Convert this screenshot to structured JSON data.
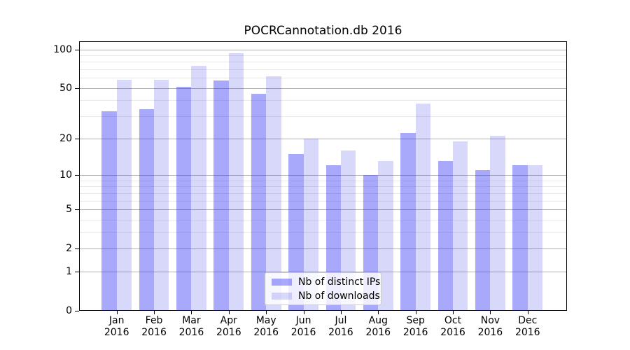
{
  "title": "POCRCannotation.db 2016",
  "chart_data": {
    "type": "bar",
    "title": "POCRCannotation.db 2016",
    "categories": [
      {
        "month": "Jan",
        "year": "2016"
      },
      {
        "month": "Feb",
        "year": "2016"
      },
      {
        "month": "Mar",
        "year": "2016"
      },
      {
        "month": "Apr",
        "year": "2016"
      },
      {
        "month": "May",
        "year": "2016"
      },
      {
        "month": "Jun",
        "year": "2016"
      },
      {
        "month": "Jul",
        "year": "2016"
      },
      {
        "month": "Aug",
        "year": "2016"
      },
      {
        "month": "Sep",
        "year": "2016"
      },
      {
        "month": "Oct",
        "year": "2016"
      },
      {
        "month": "Nov",
        "year": "2016"
      },
      {
        "month": "Dec",
        "year": "2016"
      }
    ],
    "series": [
      {
        "name": "Nb of distinct IPs",
        "values": [
          33,
          34,
          51,
          57,
          45,
          15,
          12,
          10,
          22,
          13,
          11,
          12
        ]
      },
      {
        "name": "Nb of downloads",
        "values": [
          58,
          58,
          75,
          93,
          62,
          20,
          16,
          13,
          38,
          19,
          21,
          12
        ]
      }
    ],
    "xlabel": "",
    "ylabel": "",
    "y_scale": "log(1+x)",
    "ylim": [
      0,
      116
    ],
    "y_major_ticks": [
      0,
      1,
      2,
      5,
      10,
      20,
      50,
      100
    ],
    "y_minor_gridlines": [
      3,
      4,
      6,
      7,
      8,
      9,
      30,
      40,
      60,
      70,
      80,
      90
    ],
    "grid": "on",
    "legend_position": "lower center"
  },
  "colors": {
    "bar_ips_rendered": "#a9a9f8",
    "bar_downloads_rendered": "#d9d9fb",
    "bar_ips_base": "#3232f5",
    "bar_downloads_base": "#2828e6",
    "grid_major": "#b0b0b0",
    "grid_minor": "#e9e9e9",
    "spine": "#000000"
  },
  "opacities": {
    "bar_ips": 0.42,
    "bar_downloads": 0.18
  }
}
